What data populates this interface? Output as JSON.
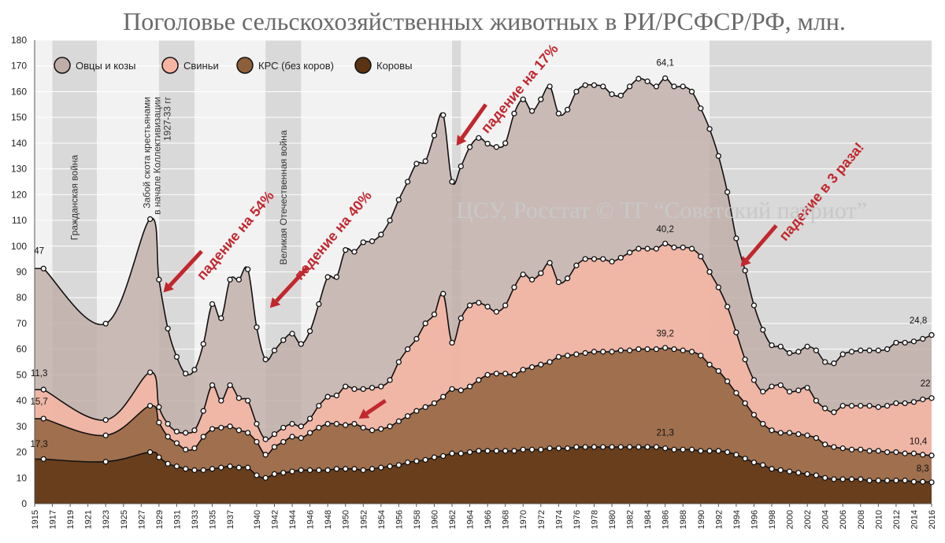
{
  "chart_data": {
    "type": "area",
    "title": "Поголовье сельскохозяйственных животных в РИ/РСФСР/РФ, млн.",
    "watermark": "ЦСУ, Росстат © ТГ “Советский патриот”",
    "ylim": [
      0,
      180
    ],
    "yticks": [
      0,
      10,
      20,
      30,
      40,
      50,
      60,
      70,
      80,
      90,
      100,
      110,
      120,
      130,
      140,
      150,
      160,
      170,
      180
    ],
    "xlim": [
      1915,
      2016
    ],
    "xticks": [
      1915,
      1917,
      1919,
      1921,
      1923,
      1925,
      1927,
      1929,
      1931,
      1933,
      1935,
      1937,
      1940,
      1942,
      1944,
      1946,
      1948,
      1950,
      1952,
      1954,
      1956,
      1958,
      1960,
      1962,
      1964,
      1966,
      1968,
      1970,
      1972,
      1974,
      1976,
      1978,
      1980,
      1982,
      1984,
      1986,
      1988,
      1990,
      1992,
      1994,
      1996,
      1998,
      2000,
      2002,
      2004,
      2006,
      2008,
      2010,
      2012,
      2014,
      2016
    ],
    "stacked": true,
    "legend": "top-left",
    "series": [
      {
        "name": "Овцы и козы",
        "color": "#c1ada7",
        "x": [
          1916,
          1923,
          1928,
          1929,
          1930,
          1931,
          1932,
          1933,
          1934,
          1935,
          1936,
          1937,
          1938,
          1939,
          1940,
          1941,
          1942,
          1943,
          1944,
          1945,
          1946,
          1947,
          1948,
          1949,
          1950,
          1951,
          1952,
          1953,
          1954,
          1955,
          1956,
          1957,
          1958,
          1959,
          1960,
          1961,
          1962,
          1963,
          1964,
          1965,
          1966,
          1967,
          1968,
          1969,
          1970,
          1971,
          1972,
          1973,
          1974,
          1975,
          1976,
          1977,
          1978,
          1979,
          1980,
          1981,
          1982,
          1983,
          1984,
          1985,
          1986,
          1987,
          1988,
          1989,
          1990,
          1991,
          1992,
          1993,
          1994,
          1995,
          1996,
          1997,
          1998,
          1999,
          2000,
          2001,
          2002,
          2003,
          2004,
          2005,
          2006,
          2007,
          2008,
          2009,
          2010,
          2011,
          2012,
          2013,
          2014,
          2015,
          2016
        ],
        "total": [
          91.3,
          69.9,
          110.5,
          87,
          68,
          57,
          50.5,
          52,
          62,
          77.5,
          72,
          87,
          87,
          91,
          68.5,
          56,
          59.5,
          63.5,
          66,
          62,
          67,
          77.5,
          88,
          88,
          98.5,
          97.8,
          101.5,
          101.9,
          104.5,
          110,
          118,
          125,
          132,
          133,
          143,
          150.9,
          125,
          131,
          138.5,
          142,
          139.8,
          138.5,
          140,
          151.5,
          157,
          152.5,
          157,
          162,
          151.5,
          153,
          160,
          162.5,
          162.5,
          162,
          159,
          158.5,
          162,
          165,
          164,
          162,
          165.2,
          162,
          162,
          160,
          153.5,
          145.5,
          135,
          121,
          103,
          90.5,
          77,
          67.5,
          61.5,
          61,
          58.5,
          59,
          61,
          59.5,
          55,
          54.5,
          58,
          59,
          59.5,
          59.5,
          59.5,
          60,
          62.5,
          62.5,
          63,
          64,
          65.5
        ]
      },
      {
        "name": "Свиньи",
        "color": "#f8b4a2",
        "x": [
          1916,
          1923,
          1928,
          1929,
          1930,
          1931,
          1932,
          1933,
          1934,
          1935,
          1936,
          1937,
          1938,
          1939,
          1940,
          1941,
          1942,
          1943,
          1944,
          1945,
          1946,
          1947,
          1948,
          1949,
          1950,
          1951,
          1952,
          1953,
          1954,
          1955,
          1956,
          1957,
          1958,
          1959,
          1960,
          1961,
          1962,
          1963,
          1964,
          1965,
          1966,
          1967,
          1968,
          1969,
          1970,
          1971,
          1972,
          1973,
          1974,
          1975,
          1976,
          1977,
          1978,
          1979,
          1980,
          1981,
          1982,
          1983,
          1984,
          1985,
          1986,
          1987,
          1988,
          1989,
          1990,
          1991,
          1992,
          1993,
          1994,
          1995,
          1996,
          1997,
          1998,
          1999,
          2000,
          2001,
          2002,
          2003,
          2004,
          2005,
          2006,
          2007,
          2008,
          2009,
          2010,
          2011,
          2012,
          2013,
          2014,
          2015,
          2016
        ],
        "total": [
          44.3,
          32.5,
          51,
          37.5,
          31,
          28,
          27.5,
          28.5,
          36,
          46,
          40,
          46,
          41,
          40,
          31,
          25,
          27,
          29.5,
          31,
          30,
          33,
          38,
          41.5,
          42,
          45.5,
          44.5,
          44.5,
          45,
          45.5,
          48,
          55,
          60,
          64,
          70,
          73.5,
          81.5,
          62.5,
          72,
          77,
          78,
          76.5,
          74.5,
          77,
          84,
          89,
          87,
          89.5,
          93.5,
          86,
          87.5,
          92.5,
          95,
          95,
          95,
          94,
          95.5,
          97.5,
          99,
          99,
          99,
          101,
          99.5,
          99.5,
          99,
          96,
          90,
          84,
          76.5,
          66.5,
          56,
          48,
          43.5,
          45.5,
          46,
          43.5,
          44,
          45,
          40,
          37,
          35.5,
          38,
          38,
          38,
          38,
          37.5,
          38,
          39,
          39,
          39.5,
          40.5,
          41
        ]
      },
      {
        "name": "КРС (без коров)",
        "color": "#8e5f3b",
        "x": [
          1916,
          1923,
          1928,
          1929,
          1930,
          1931,
          1932,
          1933,
          1934,
          1935,
          1936,
          1937,
          1938,
          1939,
          1940,
          1941,
          1942,
          1943,
          1944,
          1945,
          1946,
          1947,
          1948,
          1949,
          1950,
          1951,
          1952,
          1953,
          1954,
          1955,
          1956,
          1957,
          1958,
          1959,
          1960,
          1961,
          1962,
          1963,
          1964,
          1965,
          1966,
          1967,
          1968,
          1969,
          1970,
          1971,
          1972,
          1973,
          1974,
          1975,
          1976,
          1977,
          1978,
          1979,
          1980,
          1981,
          1982,
          1983,
          1984,
          1985,
          1986,
          1987,
          1988,
          1989,
          1990,
          1991,
          1992,
          1993,
          1994,
          1995,
          1996,
          1997,
          1998,
          1999,
          2000,
          2001,
          2002,
          2003,
          2004,
          2005,
          2006,
          2007,
          2008,
          2009,
          2010,
          2011,
          2012,
          2013,
          2014,
          2015,
          2016
        ],
        "total": [
          33,
          26.5,
          38,
          31.5,
          26,
          23.5,
          21,
          21.5,
          26,
          29,
          29.5,
          30,
          28.5,
          27.5,
          24,
          19,
          22,
          24,
          26,
          25.5,
          27.5,
          29.5,
          31,
          31,
          30.5,
          31,
          29.5,
          28.5,
          29,
          30,
          32,
          34,
          36,
          37.5,
          39,
          41.5,
          44.5,
          44,
          45.5,
          48,
          50,
          50.5,
          50.5,
          50,
          52,
          53,
          54,
          55,
          57,
          57.5,
          58,
          58.5,
          59,
          59,
          59,
          59.5,
          59.5,
          60,
          60,
          60,
          60.5,
          60,
          59.5,
          59,
          57.5,
          54,
          51.5,
          47.5,
          43,
          39,
          34.5,
          31,
          28.5,
          27.5,
          27.5,
          27,
          26.5,
          25.5,
          23,
          22,
          21.5,
          21,
          21,
          20.5,
          20.5,
          20,
          20,
          19.5,
          19.5,
          19,
          18.7
        ]
      },
      {
        "name": "Коровы",
        "color": "#5b3312",
        "x": [
          1916,
          1923,
          1928,
          1929,
          1930,
          1931,
          1932,
          1933,
          1934,
          1935,
          1936,
          1937,
          1938,
          1939,
          1940,
          1941,
          1942,
          1943,
          1944,
          1945,
          1946,
          1947,
          1948,
          1949,
          1950,
          1951,
          1952,
          1953,
          1954,
          1955,
          1956,
          1957,
          1958,
          1959,
          1960,
          1961,
          1962,
          1963,
          1964,
          1965,
          1966,
          1967,
          1968,
          1969,
          1970,
          1971,
          1972,
          1973,
          1974,
          1975,
          1976,
          1977,
          1978,
          1979,
          1980,
          1981,
          1982,
          1983,
          1984,
          1985,
          1986,
          1987,
          1988,
          1989,
          1990,
          1991,
          1992,
          1993,
          1994,
          1995,
          1996,
          1997,
          1998,
          1999,
          2000,
          2001,
          2002,
          2003,
          2004,
          2005,
          2006,
          2007,
          2008,
          2009,
          2010,
          2011,
          2012,
          2013,
          2014,
          2015,
          2016
        ],
        "total": [
          17.3,
          16.3,
          20,
          18,
          15.5,
          14.5,
          13.5,
          13,
          13,
          13.5,
          14,
          14.5,
          14,
          14,
          11,
          10,
          11.5,
          12,
          12.5,
          13,
          13,
          13,
          13,
          13.5,
          13.5,
          13.5,
          13,
          13.5,
          14,
          14.5,
          15,
          16,
          16.5,
          17,
          18,
          18.5,
          19.5,
          19.5,
          20,
          20.5,
          20.5,
          20.5,
          20.5,
          20.5,
          21,
          21,
          21,
          21.5,
          21.5,
          21.5,
          22,
          22,
          22,
          22,
          22,
          22,
          22,
          22,
          22,
          22,
          21.5,
          21,
          21,
          21,
          20.5,
          20.5,
          20.5,
          20,
          19,
          17.5,
          16,
          15,
          13.5,
          13,
          12.5,
          12,
          11.5,
          11,
          10,
          9.5,
          9.5,
          9.5,
          9.5,
          9,
          9,
          9,
          9,
          9,
          8.5,
          8.5,
          8.3
        ]
      }
    ],
    "data_labels": [
      {
        "text": "47",
        "x": 1915.5,
        "y": 97
      },
      {
        "text": "11,3",
        "x": 1915.5,
        "y": 49.5
      },
      {
        "text": "15,7",
        "x": 1915.5,
        "y": 38.5
      },
      {
        "text": "17,3",
        "x": 1915.5,
        "y": 22
      },
      {
        "text": "64,1",
        "x": 1986,
        "y": 170
      },
      {
        "text": "40,2",
        "x": 1986,
        "y": 105.5
      },
      {
        "text": "39,2",
        "x": 1986,
        "y": 65
      },
      {
        "text": "21,3",
        "x": 1986,
        "y": 26.5
      },
      {
        "text": "24,8",
        "x": 2014.5,
        "y": 70
      },
      {
        "text": "22",
        "x": 2015.3,
        "y": 45.5
      },
      {
        "text": "10,4",
        "x": 2014.5,
        "y": 23
      },
      {
        "text": "8,3",
        "x": 2015,
        "y": 12.5
      }
    ],
    "bands": [
      {
        "x0": 1917,
        "x1": 1922,
        "label": "Гражданская война"
      },
      {
        "x0": 1929,
        "x1": 1933,
        "label": "Забой скота крестьянами в начале Коллективизации 1927-33 гг"
      },
      {
        "x0": 1941,
        "x1": 1945,
        "label": "Великая Отечественная война"
      },
      {
        "x0": 1962,
        "x1": 1963,
        "label": ""
      },
      {
        "x0": 1991,
        "x1": 2016,
        "label": ""
      }
    ],
    "annotations": [
      {
        "text": "падение на 54%",
        "x": 1938,
        "y": 103,
        "angle": -50
      },
      {
        "text": "падение на 40%",
        "x": 1949,
        "y": 103,
        "angle": -50
      },
      {
        "text": "падение на 17%",
        "x": 1970,
        "y": 160,
        "angle": -50
      },
      {
        "text": "падение в 3 раза!",
        "x": 2004,
        "y": 120,
        "angle": -50
      }
    ]
  }
}
